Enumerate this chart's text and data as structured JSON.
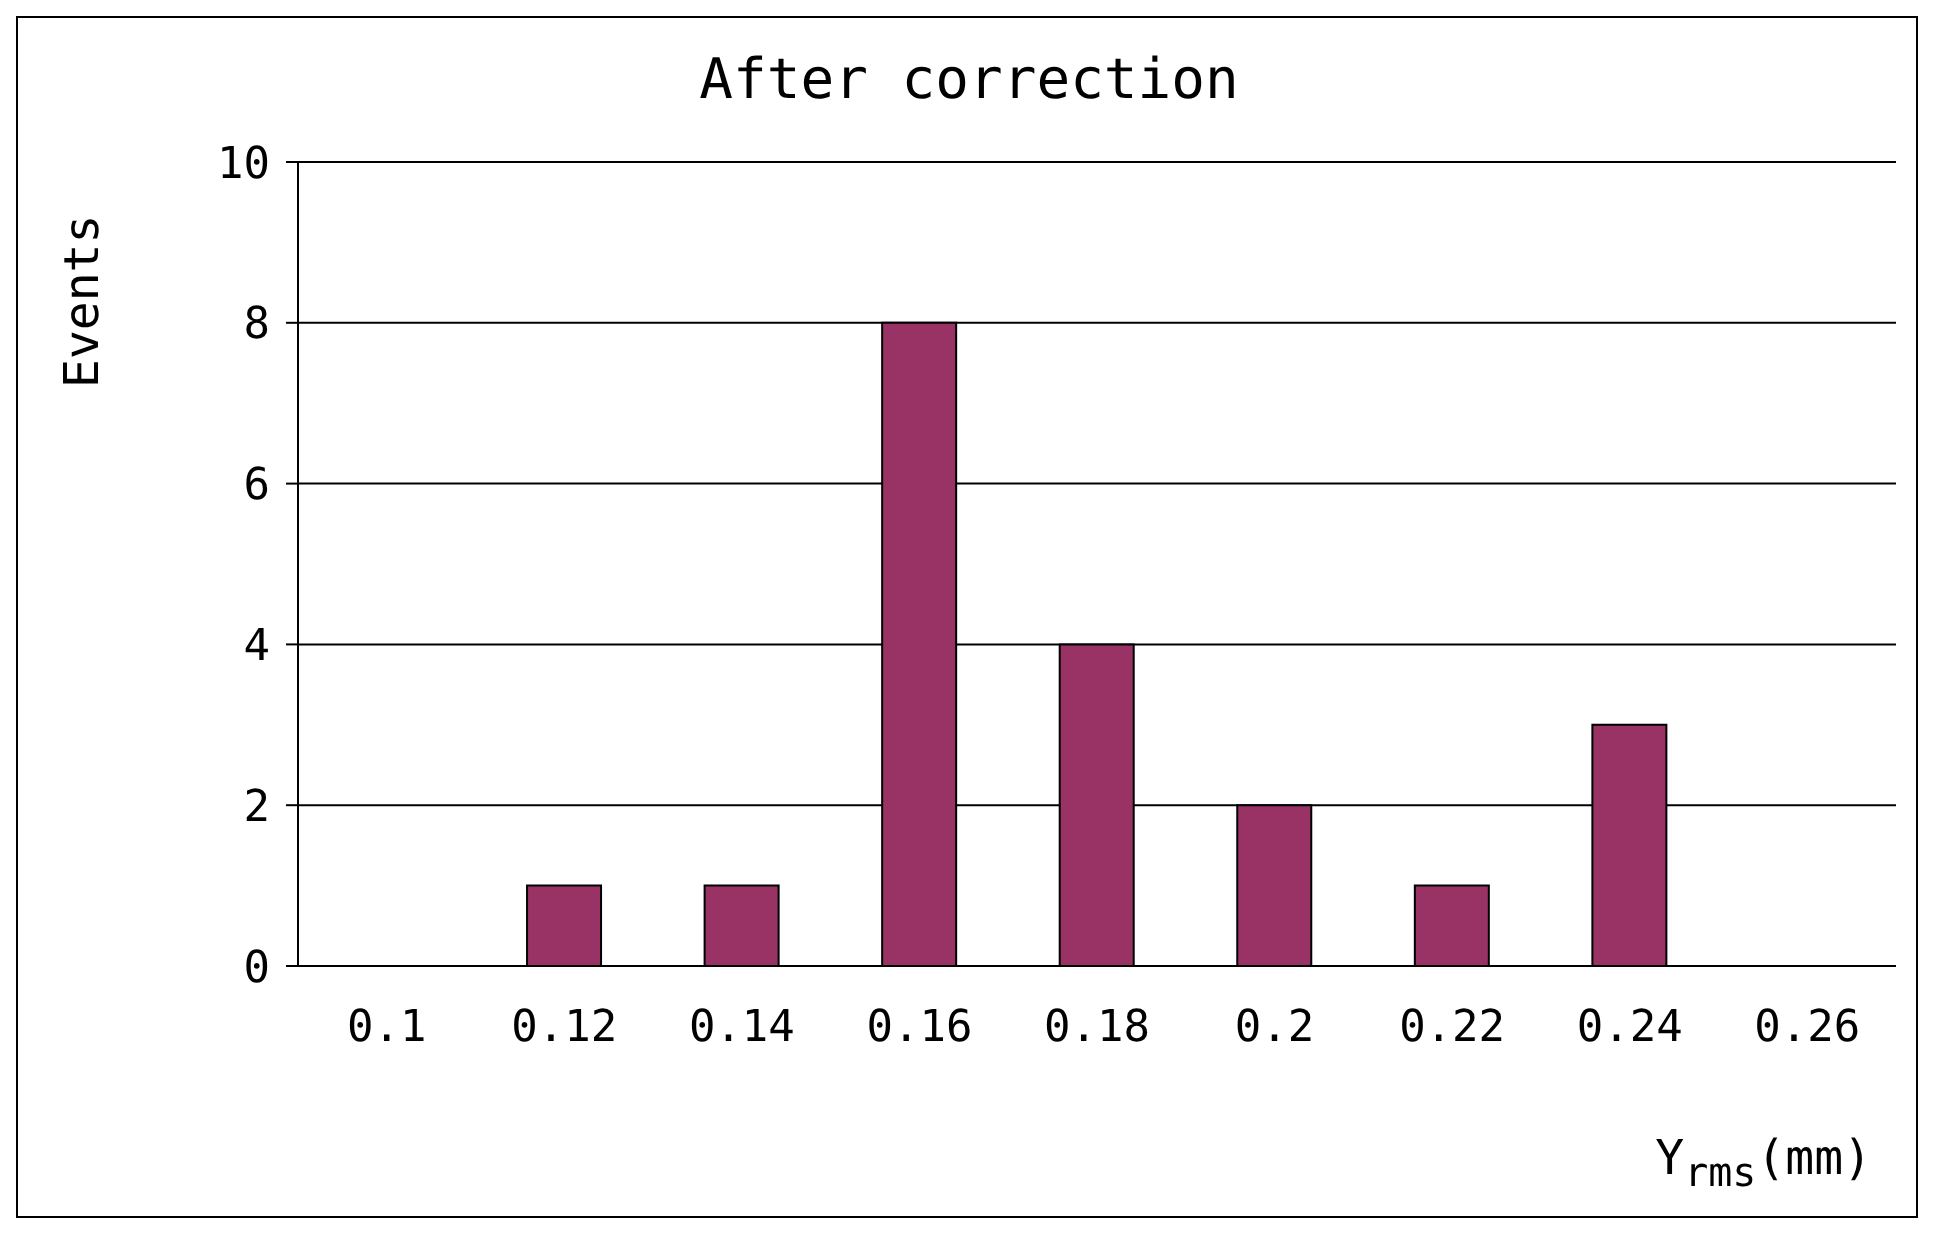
{
  "chart_data": {
    "type": "bar",
    "title": "After correction",
    "xlabel": "Y$_{rms}$(mm)",
    "ylabel": "Events",
    "categories": [
      "0.1",
      "0.12",
      "0.14",
      "0.16",
      "0.18",
      "0.2",
      "0.22",
      "0.24",
      "0.26"
    ],
    "values": [
      0,
      1,
      1,
      8,
      4,
      2,
      1,
      3,
      0
    ],
    "color": "#993366",
    "ylim": [
      0,
      10
    ],
    "yticks": [
      0,
      2,
      4,
      6,
      8,
      10
    ],
    "grid": "y",
    "legend": false
  }
}
